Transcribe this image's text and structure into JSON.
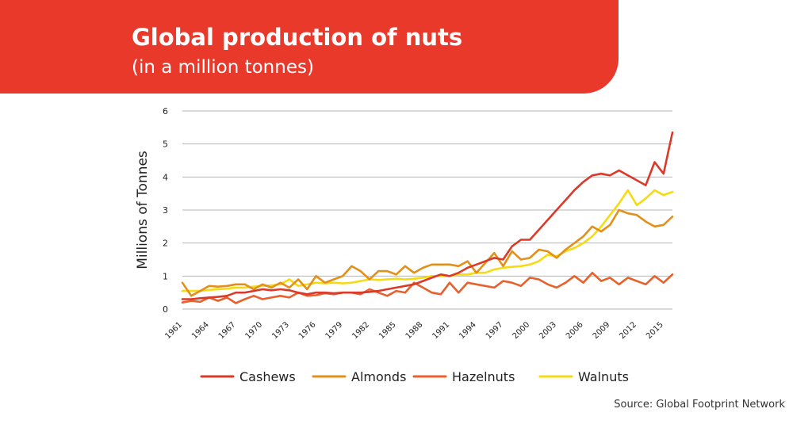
{
  "header": {
    "title": "Global production of nuts",
    "subtitle": "(in a million tonnes)"
  },
  "source": "Source: Global Footprint Network",
  "colors": {
    "banner": "#E8392B",
    "grid": "#b5b5b5",
    "text": "#222222"
  },
  "chart_data": {
    "type": "line",
    "ylabel": "Millions of Tonnes",
    "xlabel": "",
    "x": [
      1961,
      1962,
      1963,
      1964,
      1965,
      1966,
      1967,
      1968,
      1969,
      1970,
      1971,
      1972,
      1973,
      1974,
      1975,
      1976,
      1977,
      1978,
      1979,
      1980,
      1981,
      1982,
      1983,
      1984,
      1985,
      1986,
      1987,
      1988,
      1989,
      1990,
      1991,
      1992,
      1993,
      1994,
      1995,
      1996,
      1997,
      1998,
      1999,
      2000,
      2001,
      2002,
      2003,
      2004,
      2005,
      2006,
      2007,
      2008,
      2009,
      2010,
      2011,
      2012,
      2013,
      2014,
      2015,
      2016
    ],
    "xticks": [
      1961,
      1964,
      1967,
      1970,
      1973,
      1976,
      1979,
      1982,
      1985,
      1988,
      1991,
      1994,
      1997,
      2000,
      2003,
      2006,
      2009,
      2012,
      2015
    ],
    "yticks": [
      0,
      1,
      2,
      3,
      4,
      5,
      6
    ],
    "ylim": [
      0,
      6
    ],
    "grid": true,
    "legend_position": "bottom",
    "series": [
      {
        "name": "Cashews",
        "color": "#D93A2A",
        "values": [
          0.3,
          0.3,
          0.33,
          0.35,
          0.37,
          0.4,
          0.5,
          0.5,
          0.55,
          0.6,
          0.57,
          0.6,
          0.57,
          0.5,
          0.45,
          0.5,
          0.5,
          0.48,
          0.5,
          0.5,
          0.5,
          0.52,
          0.55,
          0.6,
          0.65,
          0.7,
          0.75,
          0.85,
          0.95,
          1.05,
          1.0,
          1.1,
          1.25,
          1.35,
          1.45,
          1.55,
          1.5,
          1.9,
          2.1,
          2.1,
          2.4,
          2.7,
          3.0,
          3.3,
          3.6,
          3.85,
          4.05,
          4.1,
          4.05,
          4.2,
          4.05,
          3.9,
          3.75,
          4.45,
          4.1,
          5.35
        ]
      },
      {
        "name": "Almonds",
        "color": "#E2901C",
        "values": [
          0.8,
          0.4,
          0.55,
          0.7,
          0.68,
          0.7,
          0.75,
          0.75,
          0.6,
          0.75,
          0.65,
          0.8,
          0.65,
          0.9,
          0.6,
          1.0,
          0.8,
          0.9,
          1.0,
          1.3,
          1.15,
          0.9,
          1.15,
          1.15,
          1.05,
          1.3,
          1.1,
          1.25,
          1.35,
          1.35,
          1.35,
          1.3,
          1.45,
          1.1,
          1.4,
          1.7,
          1.3,
          1.75,
          1.5,
          1.55,
          1.8,
          1.75,
          1.55,
          1.8,
          2.0,
          2.2,
          2.5,
          2.35,
          2.55,
          3.0,
          2.9,
          2.85,
          2.65,
          2.5,
          2.55,
          2.8
        ]
      },
      {
        "name": "Hazelnuts",
        "color": "#E8612C",
        "values": [
          0.2,
          0.25,
          0.22,
          0.35,
          0.25,
          0.35,
          0.18,
          0.3,
          0.4,
          0.3,
          0.35,
          0.4,
          0.35,
          0.5,
          0.4,
          0.42,
          0.48,
          0.45,
          0.5,
          0.5,
          0.45,
          0.6,
          0.5,
          0.4,
          0.55,
          0.5,
          0.8,
          0.65,
          0.5,
          0.45,
          0.8,
          0.5,
          0.8,
          0.75,
          0.7,
          0.65,
          0.85,
          0.8,
          0.7,
          0.95,
          0.9,
          0.75,
          0.65,
          0.8,
          1.0,
          0.8,
          1.1,
          0.85,
          0.95,
          0.75,
          0.95,
          0.85,
          0.75,
          1.0,
          0.8,
          1.05
        ]
      },
      {
        "name": "Walnuts",
        "color": "#F5DB12",
        "values": [
          0.55,
          0.55,
          0.55,
          0.58,
          0.6,
          0.62,
          0.65,
          0.65,
          0.68,
          0.7,
          0.72,
          0.75,
          0.9,
          0.7,
          0.75,
          0.8,
          0.78,
          0.8,
          0.78,
          0.8,
          0.85,
          0.9,
          0.88,
          0.9,
          0.92,
          0.9,
          0.92,
          0.95,
          1.0,
          1.0,
          1.0,
          1.05,
          1.05,
          1.1,
          1.1,
          1.2,
          1.25,
          1.28,
          1.3,
          1.35,
          1.45,
          1.65,
          1.6,
          1.75,
          1.85,
          2.0,
          2.2,
          2.5,
          2.85,
          3.2,
          3.6,
          3.15,
          3.35,
          3.6,
          3.45,
          3.55
        ]
      }
    ]
  }
}
